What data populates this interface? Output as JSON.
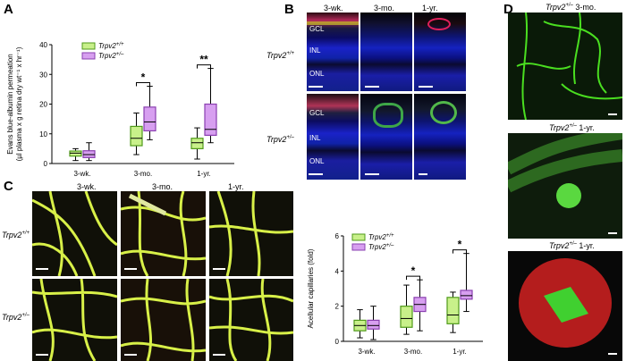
{
  "panels": {
    "A": "A",
    "B": "B",
    "C": "C",
    "D": "D"
  },
  "colors": {
    "wt": "#c8f08a",
    "het": "#d79ff0",
    "wt_edge": "#4f9a1a",
    "het_edge": "#8a3fb0"
  },
  "chart_data": [
    {
      "id": "A",
      "type": "box",
      "ylabel_lines": [
        "Evans blue-albumin permeation",
        "(µl plasma x g retina dry wt⁻¹ x hr⁻¹)"
      ],
      "categories": [
        "3-wk.",
        "3-mo.",
        "1-yr."
      ],
      "ylim": [
        0,
        40
      ],
      "yticks": [
        "0",
        "10",
        "20",
        "30",
        "40"
      ],
      "grid": false,
      "legend_position": "top-left",
      "series": [
        {
          "name": "Trpv2+/+",
          "legend_base": "Trpv2",
          "legend_sup": "+/+",
          "boxes": [
            [
              1,
              2.5,
              3.5,
              4.2,
              5
            ],
            [
              3,
              6,
              8.5,
              12.5,
              17
            ],
            [
              1.5,
              5,
              7,
              8.5,
              12
            ]
          ]
        },
        {
          "name": "Trpv2+/-",
          "legend_base": "Trpv2",
          "legend_sup": "+/–",
          "boxes": [
            [
              1,
              2,
              3,
              4.3,
              7
            ],
            [
              8,
              11,
              14,
              19,
              26
            ],
            [
              7,
              9.5,
              11.5,
              20,
              32
            ]
          ]
        }
      ],
      "annotations": [
        {
          "group": 1,
          "text": "*"
        },
        {
          "group": 2,
          "text": "**"
        }
      ]
    },
    {
      "id": "C",
      "type": "box",
      "ylabel": "Acellular capillaries (fold)",
      "categories": [
        "3-wk.",
        "3-mo.",
        "1-yr."
      ],
      "ylim": [
        0,
        6
      ],
      "yticks": [
        "0",
        "2",
        "4",
        "6"
      ],
      "grid": false,
      "legend_position": "top-left",
      "series": [
        {
          "name": "Trpv2+/+",
          "legend_base": "Trpv2",
          "legend_sup": "+/+",
          "boxes": [
            [
              0.2,
              0.6,
              0.9,
              1.2,
              1.8
            ],
            [
              0.4,
              0.8,
              1.3,
              2,
              3.2
            ],
            [
              0.5,
              1,
              1.5,
              2.5,
              2.8
            ]
          ]
        },
        {
          "name": "Trpv2+/-",
          "legend_base": "Trpv2",
          "legend_sup": "+/–",
          "boxes": [
            [
              0.1,
              0.7,
              0.9,
              1.2,
              2
            ],
            [
              0.6,
              1.7,
              2.1,
              2.5,
              3.5
            ],
            [
              1.7,
              2.4,
              2.6,
              2.9,
              5
            ]
          ]
        }
      ],
      "annotations": [
        {
          "group": 1,
          "text": "*"
        },
        {
          "group": 2,
          "text": "*"
        }
      ]
    }
  ],
  "panelB": {
    "columns": [
      "3-wk.",
      "3-mo.",
      "1-yr."
    ],
    "rows": [
      {
        "base": "Trpv2",
        "sup": "+/+"
      },
      {
        "base": "Trpv2",
        "sup": "+/–"
      }
    ],
    "layers": [
      "GCL",
      "INL",
      "ONL"
    ]
  },
  "panelC": {
    "columns": [
      "3-wk.",
      "3-mo.",
      "1-yr."
    ],
    "rows": [
      {
        "base": "Trpv2",
        "sup": "+/+"
      },
      {
        "base": "Trpv2",
        "sup": "+/–"
      }
    ]
  },
  "panelD": {
    "captions": [
      {
        "base": "Trpv2",
        "sup": "+/–",
        "rest": " 3-mo."
      },
      {
        "base": "Trpv2",
        "sup": "+/–",
        "rest": " 1-yr."
      },
      {
        "base": "Trpv2",
        "sup": "+/–",
        "rest": " 1-yr."
      }
    ]
  }
}
